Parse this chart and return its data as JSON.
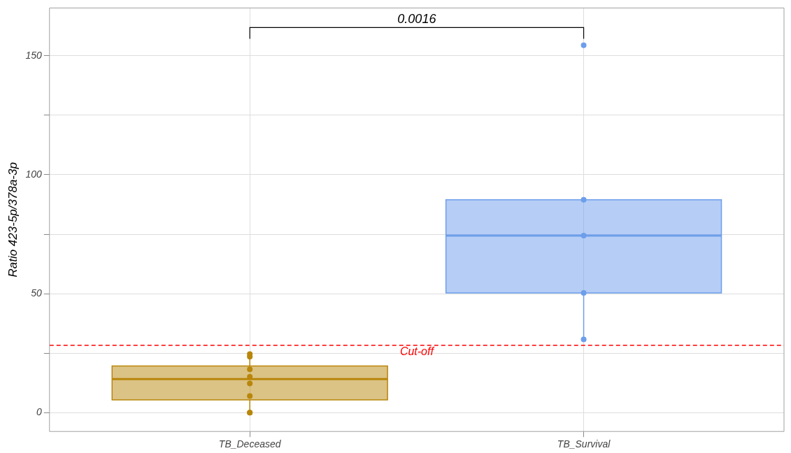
{
  "chart_data": {
    "type": "box",
    "ylabel": "Ratio 423-5p/378a-3p",
    "categories": [
      "TB_Deceased",
      "TB_Survival"
    ],
    "ylim": [
      -7.9,
      170.1
    ],
    "yticks": [
      0,
      {
        "value": 25,
        "label": null
      },
      50,
      {
        "value": 75,
        "label": null
      },
      100,
      {
        "value": 125,
        "label": null
      },
      150
    ],
    "grid": true,
    "legend": false,
    "series": [
      {
        "type": "box",
        "colors": [
          "#b8860b",
          "#6d9eeb"
        ],
        "boxes": [
          {
            "low": 0,
            "q1": 5.4,
            "median": 14.1,
            "q3": 19.6,
            "high": 24.8
          },
          {
            "low": 31.1,
            "q1": 50.3,
            "median": 74.4,
            "q3": 89.5,
            "high": 89.5
          }
        ]
      },
      {
        "type": "scatter",
        "marker": "circle",
        "x": [
          "TB_Deceased",
          "TB_Deceased",
          "TB_Deceased",
          "TB_Deceased",
          "TB_Deceased",
          "TB_Deceased",
          "TB_Deceased",
          "TB_Deceased",
          "TB_Survival",
          "TB_Survival",
          "TB_Survival",
          "TB_Survival",
          "TB_Survival"
        ],
        "values": [
          23.5,
          24.6,
          18.2,
          15.1,
          12.3,
          7.0,
          0,
          0,
          154.4,
          89.5,
          74.4,
          50.3,
          30.8
        ],
        "colors": [
          "#b8860b",
          "#b8860b",
          "#b8860b",
          "#b8860b",
          "#b8860b",
          "#b8860b",
          "#b8860b",
          "#b8860b",
          "#6d9eeb",
          "#6d9eeb",
          "#6d9eeb",
          "#6d9eeb",
          "#6d9eeb"
        ]
      }
    ],
    "ref_lines": [
      {
        "axis": "y",
        "value": 28.3,
        "label": "Cut-off",
        "color": "#ff0000",
        "line_style": "dashed"
      }
    ],
    "annotations": [
      "0.0016"
    ]
  }
}
